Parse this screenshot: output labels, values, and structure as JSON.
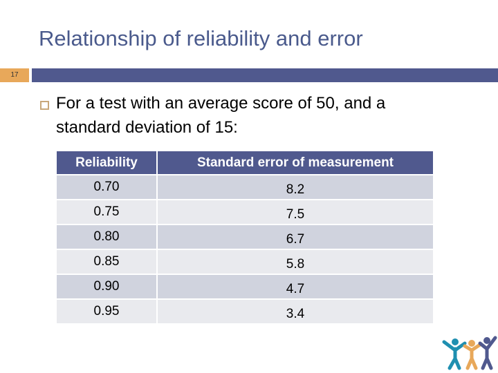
{
  "title": "Relationship of reliability and error",
  "slide_number": "17",
  "bullet": "For a test with an average score of 50, and a standard deviation of 15:",
  "table": {
    "headers": [
      "Reliability",
      "Standard error of measurement"
    ],
    "rows": [
      [
        "0.70",
        "8.2"
      ],
      [
        "0.75",
        "7.5"
      ],
      [
        "0.80",
        "6.7"
      ],
      [
        "0.85",
        "5.8"
      ],
      [
        "0.90",
        "4.7"
      ],
      [
        "0.95",
        "3.4"
      ]
    ]
  },
  "colors": {
    "accent": "#50598e",
    "orange": "#e8a85a"
  }
}
